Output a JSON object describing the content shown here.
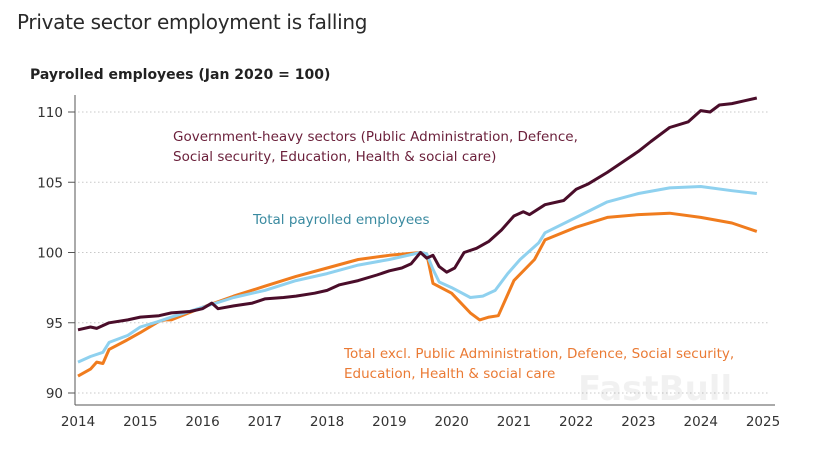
{
  "page": {
    "title": "Private sector employment is falling",
    "watermark": "FastBull"
  },
  "chart_data": {
    "type": "line",
    "title": "Private sector employment is falling",
    "ylabel": "Payrolled employees (Jan 2020 = 100)",
    "xlabel": "",
    "xlim": [
      2014,
      2025
    ],
    "ylim": [
      89.2,
      111.5
    ],
    "xticks": [
      "2014",
      "2015",
      "2016",
      "2017",
      "2018",
      "2019",
      "2020",
      "2021",
      "2022",
      "2023",
      "2024",
      "2025"
    ],
    "yticks": [
      90,
      95,
      100,
      105,
      110
    ],
    "grid": "horizontal dotted",
    "series": [
      {
        "name": "Government-heavy sectors",
        "color": "#4a0d2a",
        "label": [
          "Government-heavy sectors (Public Administration, Defence,",
          "Social security, Education, Health & social care)"
        ],
        "label_color": "#6a1f3a",
        "x": [
          2014.0,
          2014.2,
          2014.3,
          2014.5,
          2014.8,
          2015.0,
          2015.3,
          2015.5,
          2015.8,
          2016.0,
          2016.15,
          2016.25,
          2016.5,
          2016.8,
          2017.0,
          2017.3,
          2017.5,
          2017.8,
          2018.0,
          2018.2,
          2018.5,
          2018.8,
          2019.0,
          2019.2,
          2019.35,
          2019.5,
          2019.6,
          2019.7,
          2019.8,
          2019.92,
          2020.05,
          2020.2,
          2020.4,
          2020.6,
          2020.8,
          2021.0,
          2021.15,
          2021.25,
          2021.5,
          2021.8,
          2022.0,
          2022.2,
          2022.5,
          2022.8,
          2023.0,
          2023.2,
          2023.5,
          2023.8,
          2024.0,
          2024.15,
          2024.3,
          2024.5,
          2024.7,
          2024.9
        ],
        "y": [
          94.5,
          94.7,
          94.6,
          95.0,
          95.2,
          95.4,
          95.5,
          95.7,
          95.8,
          96.0,
          96.4,
          96.0,
          96.2,
          96.4,
          96.7,
          96.8,
          96.9,
          97.1,
          97.3,
          97.7,
          98.0,
          98.4,
          98.7,
          98.9,
          99.2,
          100.0,
          99.6,
          99.8,
          99.0,
          98.6,
          98.9,
          100.0,
          100.3,
          100.8,
          101.6,
          102.6,
          102.9,
          102.7,
          103.4,
          103.7,
          104.5,
          104.9,
          105.7,
          106.6,
          107.2,
          107.9,
          108.9,
          109.3,
          110.1,
          110.0,
          110.5,
          110.6,
          110.8,
          111.0
        ]
      },
      {
        "name": "Total payrolled employees",
        "color": "#8fd1ef",
        "label": [
          "Total payrolled employees"
        ],
        "label_color": "#3a8aa0",
        "x": [
          2014.0,
          2014.2,
          2014.4,
          2014.5,
          2014.8,
          2015.0,
          2015.3,
          2015.5,
          2016.0,
          2016.5,
          2017.0,
          2017.5,
          2018.0,
          2018.5,
          2019.0,
          2019.5,
          2019.6,
          2019.7,
          2019.8,
          2020.0,
          2020.3,
          2020.5,
          2020.7,
          2020.9,
          2021.1,
          2021.4,
          2021.5,
          2022.0,
          2022.5,
          2023.0,
          2023.5,
          2024.0,
          2024.5,
          2024.9
        ],
        "y": [
          92.2,
          92.6,
          92.9,
          93.6,
          94.1,
          94.7,
          95.1,
          95.4,
          96.1,
          96.8,
          97.3,
          98.0,
          98.5,
          99.1,
          99.5,
          100.0,
          99.9,
          98.8,
          97.9,
          97.5,
          96.8,
          96.9,
          97.3,
          98.5,
          99.5,
          100.7,
          101.4,
          102.5,
          103.6,
          104.2,
          104.6,
          104.7,
          104.4,
          104.2
        ]
      },
      {
        "name": "Total excl. government-heavy sectors",
        "color": "#f07c1e",
        "label": [
          "Total excl. Public Administration, Defence, Social security,",
          "Education, Health & social care"
        ],
        "label_color": "#ea7a34",
        "x": [
          2014.0,
          2014.2,
          2014.3,
          2014.4,
          2014.5,
          2014.8,
          2015.0,
          2015.3,
          2015.4,
          2015.5,
          2016.0,
          2016.5,
          2017.0,
          2017.5,
          2018.0,
          2018.5,
          2019.0,
          2019.5,
          2019.6,
          2019.7,
          2020.0,
          2020.3,
          2020.45,
          2020.6,
          2020.75,
          2021.0,
          2021.33,
          2021.5,
          2022.0,
          2022.5,
          2023.0,
          2023.5,
          2024.0,
          2024.5,
          2024.9
        ],
        "y": [
          91.2,
          91.7,
          92.2,
          92.1,
          93.1,
          93.8,
          94.3,
          95.1,
          95.2,
          95.2,
          96.1,
          96.9,
          97.6,
          98.3,
          98.9,
          99.5,
          99.8,
          100.0,
          99.9,
          97.8,
          97.1,
          95.7,
          95.2,
          95.4,
          95.5,
          98.0,
          99.5,
          100.9,
          101.8,
          102.5,
          102.7,
          102.8,
          102.5,
          102.1,
          101.5
        ]
      }
    ]
  }
}
